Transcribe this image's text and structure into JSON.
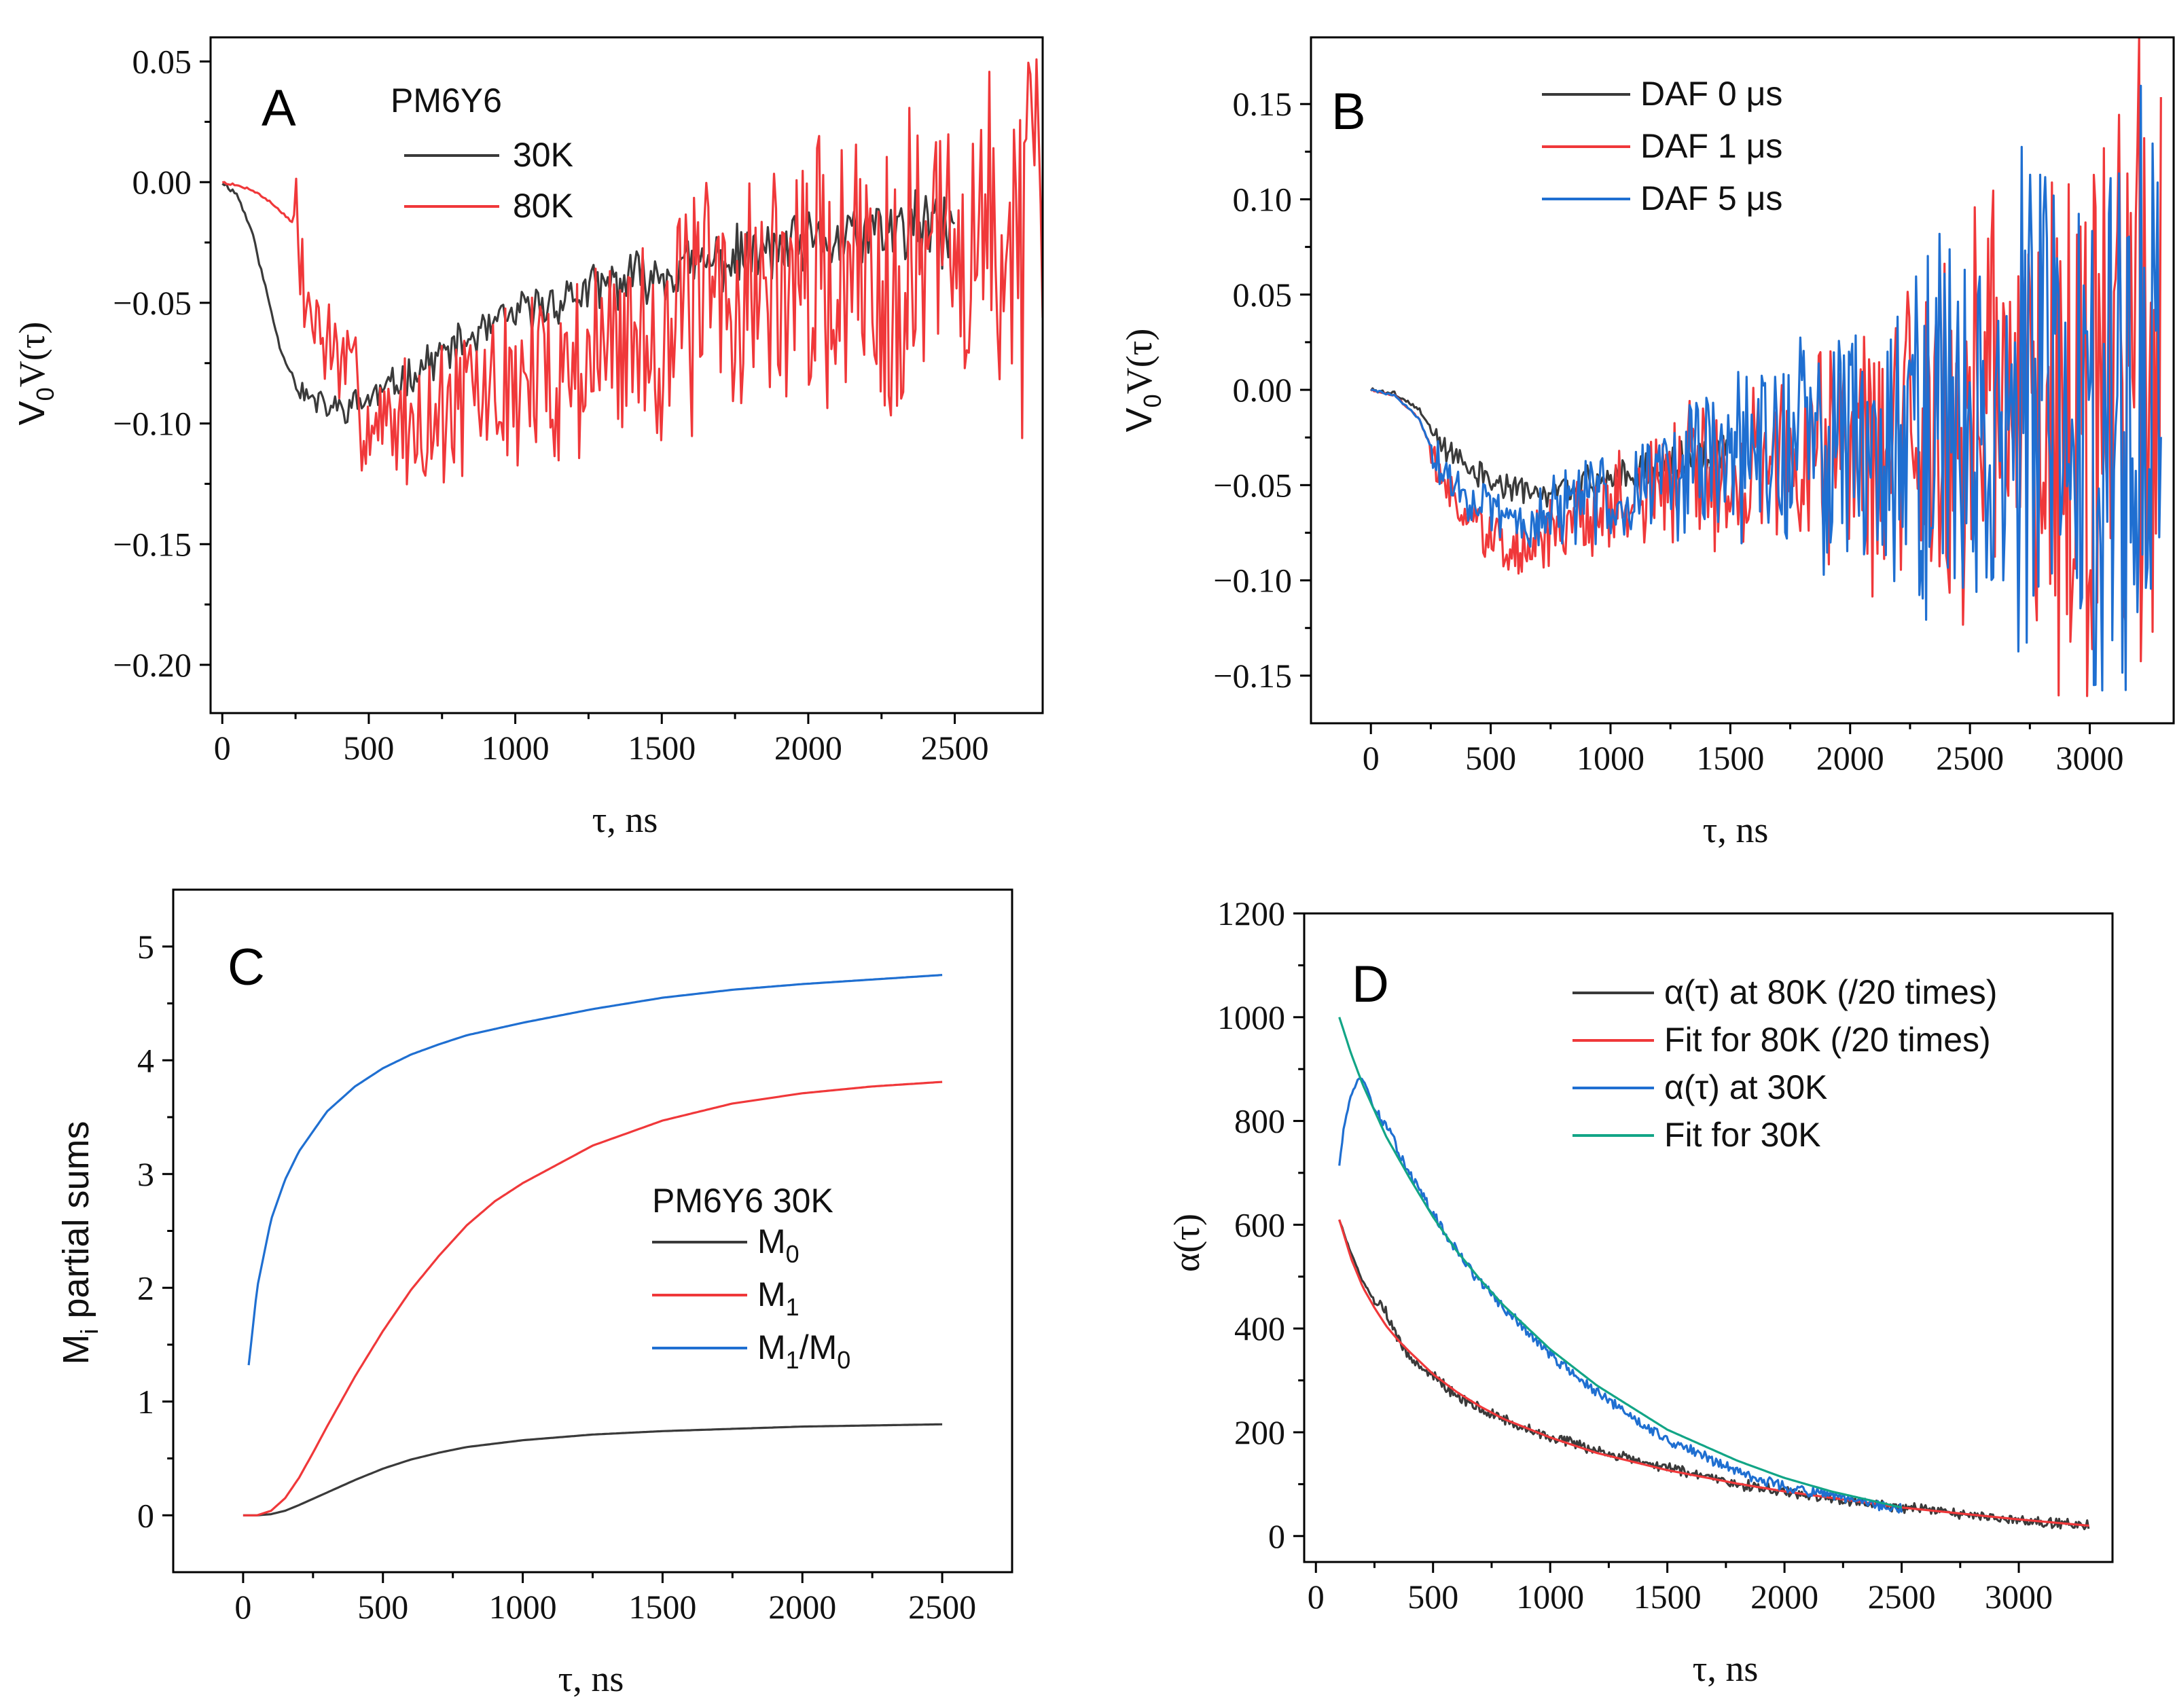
{
  "figure": {
    "colors": {
      "black": "#3a3a3a",
      "red": "#f0383a",
      "blue": "#1f6fd1",
      "green": "#12a586"
    }
  },
  "chart_data": [
    {
      "id": "A",
      "type": "line",
      "panel_label": "A",
      "xlabel": "τ, ns",
      "ylabel_base": "V",
      "ylabel_sub": "0",
      "ylabel_rest": "V(τ)",
      "xlim": [
        -40,
        2800
      ],
      "ylim": [
        -0.22,
        0.06
      ],
      "xticks": [
        0,
        500,
        1000,
        1500,
        2000,
        2500
      ],
      "xtick_labels": [
        "0",
        "500",
        "1000",
        "1500",
        "2000",
        "2500"
      ],
      "yticks": [
        0.05,
        0.0,
        -0.05,
        -0.1,
        -0.15,
        -0.2
      ],
      "ytick_labels": [
        "0.05",
        "0.00",
        "−0.05",
        "−0.10",
        "−0.15",
        "−0.20"
      ],
      "legend_title": "PM6Y6",
      "series": [
        {
          "name": "30K",
          "color": "#3a3a3a",
          "seed": 11,
          "noise": "low",
          "x": [
            0,
            50,
            100,
            150,
            200,
            260,
            300,
            350,
            400,
            450,
            500,
            600,
            700,
            800,
            900,
            1000,
            1200,
            1400,
            1600,
            1800,
            2000,
            2200,
            2300,
            2400,
            2500
          ],
          "values": [
            0.0,
            -0.005,
            -0.02,
            -0.045,
            -0.07,
            -0.085,
            -0.09,
            -0.093,
            -0.094,
            -0.092,
            -0.09,
            -0.083,
            -0.075,
            -0.068,
            -0.062,
            -0.055,
            -0.047,
            -0.04,
            -0.035,
            -0.03,
            -0.027,
            -0.022,
            -0.02,
            -0.019,
            -0.02
          ]
        },
        {
          "name": "80K",
          "color": "#f0383a",
          "seed": 7,
          "noise": "high",
          "x": [
            0,
            100,
            150,
            200,
            240,
            250,
            270,
            300,
            350,
            400,
            450,
            500,
            600,
            700,
            800,
            900,
            1000,
            1200,
            1400,
            1600,
            1800,
            2000,
            2200,
            2400,
            2600,
            2800
          ],
          "values": [
            0.0,
            -0.003,
            -0.007,
            -0.012,
            -0.017,
            -0.01,
            -0.04,
            -0.055,
            -0.065,
            -0.075,
            -0.085,
            -0.1,
            -0.1,
            -0.098,
            -0.093,
            -0.088,
            -0.085,
            -0.075,
            -0.065,
            -0.055,
            -0.045,
            -0.04,
            -0.035,
            -0.03,
            -0.025,
            -0.02
          ]
        }
      ]
    },
    {
      "id": "B",
      "type": "line",
      "panel_label": "B",
      "xlabel": "τ, ns",
      "ylabel_base": "V",
      "ylabel_sub": "0",
      "ylabel_rest": "V(τ)",
      "xlim": [
        -250,
        3350
      ],
      "ylim": [
        -0.175,
        0.185
      ],
      "xticks": [
        0,
        500,
        1000,
        1500,
        2000,
        2500,
        3000
      ],
      "xtick_labels": [
        "0",
        "500",
        "1000",
        "1500",
        "2000",
        "2500",
        "3000"
      ],
      "yticks": [
        0.15,
        0.1,
        0.05,
        0.0,
        -0.05,
        -0.1,
        -0.15
      ],
      "ytick_labels": [
        "0.15",
        "0.10",
        "0.05",
        "0.00",
        "−0.05",
        "−0.10",
        "−0.15"
      ],
      "series": [
        {
          "name": "DAF 0 μs",
          "color": "#3a3a3a",
          "seed": 3,
          "noise": "low",
          "x": [
            0,
            100,
            200,
            250,
            300,
            400,
            500,
            600,
            700,
            800,
            1000,
            1200,
            1400,
            1500
          ],
          "values": [
            0.0,
            -0.002,
            -0.01,
            -0.02,
            -0.03,
            -0.04,
            -0.048,
            -0.053,
            -0.055,
            -0.052,
            -0.046,
            -0.04,
            -0.035,
            -0.03
          ]
        },
        {
          "name": "DAF 1 μs",
          "color": "#f0383a",
          "seed": 19,
          "noise": "b",
          "x": [
            0,
            100,
            200,
            250,
            300,
            400,
            500,
            600,
            700,
            800,
            1000,
            1200,
            1500,
            2000,
            2500,
            3000,
            3300
          ],
          "values": [
            0.0,
            -0.003,
            -0.015,
            -0.03,
            -0.05,
            -0.065,
            -0.08,
            -0.085,
            -0.08,
            -0.072,
            -0.06,
            -0.05,
            -0.04,
            -0.025,
            -0.02,
            -0.01,
            -0.01
          ]
        },
        {
          "name": "DAF 5 μs",
          "color": "#1f6fd1",
          "seed": 29,
          "noise": "b",
          "x": [
            0,
            100,
            200,
            250,
            300,
            400,
            500,
            600,
            700,
            800,
            1000,
            1200,
            1500,
            2000,
            2500,
            3000,
            3300
          ],
          "values": [
            0.0,
            -0.003,
            -0.015,
            -0.03,
            -0.045,
            -0.055,
            -0.065,
            -0.07,
            -0.068,
            -0.062,
            -0.055,
            -0.045,
            -0.035,
            -0.025,
            -0.015,
            -0.01,
            -0.01
          ]
        }
      ]
    },
    {
      "id": "C",
      "type": "line",
      "panel_label": "C",
      "xlabel": "τ, ns",
      "ylabel_base": "M",
      "ylabel_sub": "i",
      "ylabel_rest": " partial sums",
      "xlim": [
        -250,
        2750
      ],
      "ylim": [
        -0.5,
        5.5
      ],
      "xticks": [
        0,
        500,
        1000,
        1500,
        2000,
        2500
      ],
      "xtick_labels": [
        "0",
        "500",
        "1000",
        "1500",
        "2000",
        "2500"
      ],
      "yticks": [
        0,
        1,
        2,
        3,
        4,
        5
      ],
      "ytick_labels": [
        "0",
        "1",
        "2",
        "3",
        "4",
        "5"
      ],
      "legend_title": "PM6Y6 30K",
      "series": [
        {
          "name": "M0",
          "label_base": "M",
          "label_sub": "0",
          "label_rest": "",
          "color": "#3a3a3a",
          "x": [
            0,
            50,
            100,
            150,
            200,
            300,
            400,
            500,
            600,
            700,
            800,
            1000,
            1250,
            1500,
            1750,
            2000,
            2250,
            2500
          ],
          "values": [
            0.0,
            0.0,
            0.01,
            0.04,
            0.09,
            0.2,
            0.31,
            0.41,
            0.49,
            0.55,
            0.6,
            0.66,
            0.71,
            0.74,
            0.76,
            0.78,
            0.79,
            0.8
          ]
        },
        {
          "name": "M1",
          "label_base": "M",
          "label_sub": "1",
          "label_rest": "",
          "color": "#f0383a",
          "x": [
            0,
            50,
            100,
            150,
            200,
            250,
            300,
            400,
            500,
            600,
            700,
            800,
            900,
            1000,
            1250,
            1500,
            1750,
            2000,
            2250,
            2500
          ],
          "values": [
            0.0,
            0.0,
            0.04,
            0.15,
            0.33,
            0.55,
            0.78,
            1.22,
            1.62,
            1.98,
            2.28,
            2.55,
            2.76,
            2.92,
            3.25,
            3.47,
            3.62,
            3.71,
            3.77,
            3.81
          ]
        },
        {
          "name": "M1/M0",
          "label_base": "M",
          "label_sub": "1",
          "label_rest": "/M",
          "label_sub2": "0",
          "color": "#1f6fd1",
          "x": [
            20,
            50,
            100,
            150,
            200,
            300,
            400,
            500,
            600,
            700,
            800,
            1000,
            1250,
            1500,
            1750,
            2000,
            2250,
            2500
          ],
          "values": [
            1.32,
            2.0,
            2.6,
            2.95,
            3.2,
            3.55,
            3.77,
            3.93,
            4.05,
            4.14,
            4.22,
            4.33,
            4.45,
            4.55,
            4.62,
            4.67,
            4.71,
            4.75
          ]
        }
      ]
    },
    {
      "id": "D",
      "type": "line",
      "panel_label": "D",
      "xlabel": "τ, ns",
      "ylabel": "α(τ)",
      "xlim": [
        -50,
        3400
      ],
      "ylim": [
        -50,
        1200
      ],
      "xticks": [
        0,
        500,
        1000,
        1500,
        2000,
        2500,
        3000
      ],
      "xtick_labels": [
        "0",
        "500",
        "1000",
        "1500",
        "2000",
        "2500",
        "3000"
      ],
      "yticks": [
        0,
        200,
        400,
        600,
        800,
        1000,
        1200
      ],
      "ytick_labels": [
        "0",
        "200",
        "400",
        "600",
        "800",
        "1000",
        "1200"
      ],
      "series": [
        {
          "name": "α(τ) at 80K (/20 times)",
          "color": "#3a3a3a",
          "seed": 5,
          "noise": "d",
          "x": [
            100,
            150,
            200,
            250,
            280,
            300,
            350,
            400,
            500,
            600,
            700,
            800,
            1000,
            1200,
            1500,
            1800,
            2000,
            2500,
            3000,
            3300
          ],
          "values": [
            610,
            545,
            490,
            455,
            450,
            430,
            380,
            345,
            310,
            270,
            245,
            225,
            190,
            165,
            130,
            100,
            85,
            55,
            30,
            20
          ]
        },
        {
          "name": "Fit for 80K (/20 times)",
          "color": "#f0383a",
          "x": [
            100,
            150,
            200,
            250,
            300,
            350,
            400,
            500,
            600,
            700,
            800,
            1000,
            1200,
            1500,
            1800,
            2000,
            2500,
            3000,
            3300
          ],
          "values": [
            610,
            535,
            480,
            440,
            405,
            378,
            355,
            312,
            278,
            250,
            226,
            190,
            160,
            127,
            101,
            86,
            55,
            32,
            20
          ]
        },
        {
          "name": " α(τ) at 30K",
          "color": "#1f6fd1",
          "seed": 13,
          "noise": "d",
          "x": [
            100,
            120,
            150,
            180,
            200,
            220,
            250,
            300,
            400,
            500,
            600,
            700,
            800,
            1000,
            1200,
            1500,
            1800,
            2000,
            2500
          ],
          "values": [
            715,
            790,
            850,
            880,
            880,
            860,
            820,
            790,
            700,
            620,
            550,
            490,
            440,
            350,
            275,
            185,
            125,
            95,
            50
          ]
        },
        {
          "name": "Fit for 30K",
          "color": "#12a586",
          "x": [
            100,
            150,
            200,
            300,
            400,
            500,
            600,
            700,
            800,
            1000,
            1200,
            1500,
            1800,
            2000,
            2200,
            2500
          ],
          "values": [
            1000,
            930,
            870,
            770,
            690,
            615,
            550,
            495,
            445,
            360,
            290,
            205,
            145,
            112,
            86,
            55
          ]
        }
      ]
    }
  ]
}
